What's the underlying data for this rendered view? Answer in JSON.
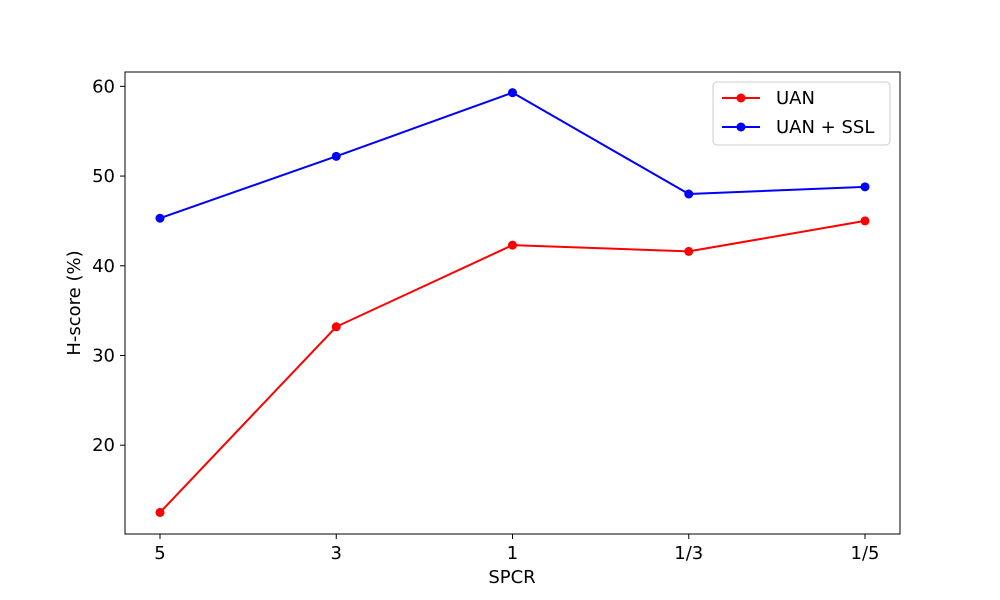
{
  "chart_data": {
    "type": "line",
    "title": "",
    "xlabel": "SPCR",
    "ylabel": "H-score (%)",
    "categories": [
      "5",
      "3",
      "1",
      "1/3",
      "1/5"
    ],
    "yticks": [
      20,
      30,
      40,
      50,
      60
    ],
    "ylim": [
      10.1,
      61.6
    ],
    "grid": false,
    "legend_position": "top-right",
    "series": [
      {
        "name": "UAN",
        "color": "#ff0000",
        "values": [
          12.5,
          33.2,
          42.3,
          41.6,
          45.0
        ]
      },
      {
        "name": "UAN + SSL",
        "color": "#0000ff",
        "values": [
          45.3,
          52.2,
          59.3,
          48.0,
          48.8
        ]
      }
    ]
  }
}
